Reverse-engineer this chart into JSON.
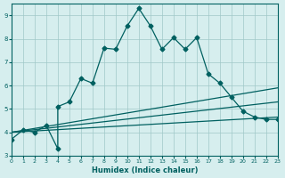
{
  "xlabel": "Humidex (Indice chaleur)",
  "xlim": [
    0,
    23
  ],
  "ylim": [
    3,
    9.5
  ],
  "yticks": [
    3,
    4,
    5,
    6,
    7,
    8,
    9
  ],
  "xticks": [
    0,
    1,
    2,
    3,
    4,
    5,
    6,
    7,
    8,
    9,
    10,
    11,
    12,
    13,
    14,
    15,
    16,
    17,
    18,
    19,
    20,
    21,
    22,
    23
  ],
  "bg_color": "#d6eeee",
  "grid_color": "#a0c8c8",
  "line_color": "#006060",
  "lines": [
    {
      "x": [
        0,
        1,
        2,
        3,
        4,
        4,
        5,
        6,
        7,
        8,
        9,
        10,
        11,
        12,
        13,
        14,
        15,
        16,
        17,
        18,
        19,
        20,
        21,
        22,
        23
      ],
      "y": [
        3.7,
        4.1,
        4.0,
        4.3,
        3.3,
        5.1,
        5.3,
        6.3,
        6.1,
        7.6,
        7.55,
        8.55,
        9.3,
        8.55,
        7.55,
        8.05,
        7.55,
        8.05,
        6.5,
        6.1,
        5.5,
        4.9,
        4.65,
        4.55,
        4.55
      ],
      "marker": true
    },
    {
      "x": [
        0,
        23
      ],
      "y": [
        4.0,
        5.9
      ],
      "marker": false
    },
    {
      "x": [
        0,
        23
      ],
      "y": [
        4.0,
        5.3
      ],
      "marker": false
    },
    {
      "x": [
        0,
        23
      ],
      "y": [
        4.0,
        4.65
      ],
      "marker": false
    }
  ]
}
